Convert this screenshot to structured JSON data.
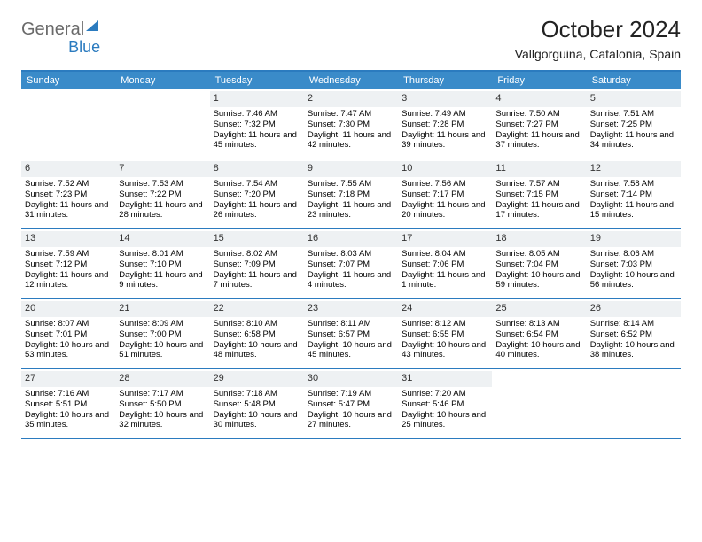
{
  "logo": {
    "text1": "General",
    "text2": "Blue"
  },
  "title": "October 2024",
  "subtitle": "Vallgorguina, Catalonia, Spain",
  "colors": {
    "header_bar": "#3a8bc9",
    "rule": "#2b7bbf",
    "daynum_bg": "#eef1f3"
  },
  "weekdays": [
    "Sunday",
    "Monday",
    "Tuesday",
    "Wednesday",
    "Thursday",
    "Friday",
    "Saturday"
  ],
  "weeks": [
    [
      null,
      null,
      {
        "n": "1",
        "a": "Sunrise: 7:46 AM",
        "b": "Sunset: 7:32 PM",
        "c": "Daylight: 11 hours and 45 minutes."
      },
      {
        "n": "2",
        "a": "Sunrise: 7:47 AM",
        "b": "Sunset: 7:30 PM",
        "c": "Daylight: 11 hours and 42 minutes."
      },
      {
        "n": "3",
        "a": "Sunrise: 7:49 AM",
        "b": "Sunset: 7:28 PM",
        "c": "Daylight: 11 hours and 39 minutes."
      },
      {
        "n": "4",
        "a": "Sunrise: 7:50 AM",
        "b": "Sunset: 7:27 PM",
        "c": "Daylight: 11 hours and 37 minutes."
      },
      {
        "n": "5",
        "a": "Sunrise: 7:51 AM",
        "b": "Sunset: 7:25 PM",
        "c": "Daylight: 11 hours and 34 minutes."
      }
    ],
    [
      {
        "n": "6",
        "a": "Sunrise: 7:52 AM",
        "b": "Sunset: 7:23 PM",
        "c": "Daylight: 11 hours and 31 minutes."
      },
      {
        "n": "7",
        "a": "Sunrise: 7:53 AM",
        "b": "Sunset: 7:22 PM",
        "c": "Daylight: 11 hours and 28 minutes."
      },
      {
        "n": "8",
        "a": "Sunrise: 7:54 AM",
        "b": "Sunset: 7:20 PM",
        "c": "Daylight: 11 hours and 26 minutes."
      },
      {
        "n": "9",
        "a": "Sunrise: 7:55 AM",
        "b": "Sunset: 7:18 PM",
        "c": "Daylight: 11 hours and 23 minutes."
      },
      {
        "n": "10",
        "a": "Sunrise: 7:56 AM",
        "b": "Sunset: 7:17 PM",
        "c": "Daylight: 11 hours and 20 minutes."
      },
      {
        "n": "11",
        "a": "Sunrise: 7:57 AM",
        "b": "Sunset: 7:15 PM",
        "c": "Daylight: 11 hours and 17 minutes."
      },
      {
        "n": "12",
        "a": "Sunrise: 7:58 AM",
        "b": "Sunset: 7:14 PM",
        "c": "Daylight: 11 hours and 15 minutes."
      }
    ],
    [
      {
        "n": "13",
        "a": "Sunrise: 7:59 AM",
        "b": "Sunset: 7:12 PM",
        "c": "Daylight: 11 hours and 12 minutes."
      },
      {
        "n": "14",
        "a": "Sunrise: 8:01 AM",
        "b": "Sunset: 7:10 PM",
        "c": "Daylight: 11 hours and 9 minutes."
      },
      {
        "n": "15",
        "a": "Sunrise: 8:02 AM",
        "b": "Sunset: 7:09 PM",
        "c": "Daylight: 11 hours and 7 minutes."
      },
      {
        "n": "16",
        "a": "Sunrise: 8:03 AM",
        "b": "Sunset: 7:07 PM",
        "c": "Daylight: 11 hours and 4 minutes."
      },
      {
        "n": "17",
        "a": "Sunrise: 8:04 AM",
        "b": "Sunset: 7:06 PM",
        "c": "Daylight: 11 hours and 1 minute."
      },
      {
        "n": "18",
        "a": "Sunrise: 8:05 AM",
        "b": "Sunset: 7:04 PM",
        "c": "Daylight: 10 hours and 59 minutes."
      },
      {
        "n": "19",
        "a": "Sunrise: 8:06 AM",
        "b": "Sunset: 7:03 PM",
        "c": "Daylight: 10 hours and 56 minutes."
      }
    ],
    [
      {
        "n": "20",
        "a": "Sunrise: 8:07 AM",
        "b": "Sunset: 7:01 PM",
        "c": "Daylight: 10 hours and 53 minutes."
      },
      {
        "n": "21",
        "a": "Sunrise: 8:09 AM",
        "b": "Sunset: 7:00 PM",
        "c": "Daylight: 10 hours and 51 minutes."
      },
      {
        "n": "22",
        "a": "Sunrise: 8:10 AM",
        "b": "Sunset: 6:58 PM",
        "c": "Daylight: 10 hours and 48 minutes."
      },
      {
        "n": "23",
        "a": "Sunrise: 8:11 AM",
        "b": "Sunset: 6:57 PM",
        "c": "Daylight: 10 hours and 45 minutes."
      },
      {
        "n": "24",
        "a": "Sunrise: 8:12 AM",
        "b": "Sunset: 6:55 PM",
        "c": "Daylight: 10 hours and 43 minutes."
      },
      {
        "n": "25",
        "a": "Sunrise: 8:13 AM",
        "b": "Sunset: 6:54 PM",
        "c": "Daylight: 10 hours and 40 minutes."
      },
      {
        "n": "26",
        "a": "Sunrise: 8:14 AM",
        "b": "Sunset: 6:52 PM",
        "c": "Daylight: 10 hours and 38 minutes."
      }
    ],
    [
      {
        "n": "27",
        "a": "Sunrise: 7:16 AM",
        "b": "Sunset: 5:51 PM",
        "c": "Daylight: 10 hours and 35 minutes."
      },
      {
        "n": "28",
        "a": "Sunrise: 7:17 AM",
        "b": "Sunset: 5:50 PM",
        "c": "Daylight: 10 hours and 32 minutes."
      },
      {
        "n": "29",
        "a": "Sunrise: 7:18 AM",
        "b": "Sunset: 5:48 PM",
        "c": "Daylight: 10 hours and 30 minutes."
      },
      {
        "n": "30",
        "a": "Sunrise: 7:19 AM",
        "b": "Sunset: 5:47 PM",
        "c": "Daylight: 10 hours and 27 minutes."
      },
      {
        "n": "31",
        "a": "Sunrise: 7:20 AM",
        "b": "Sunset: 5:46 PM",
        "c": "Daylight: 10 hours and 25 minutes."
      },
      null,
      null
    ]
  ]
}
